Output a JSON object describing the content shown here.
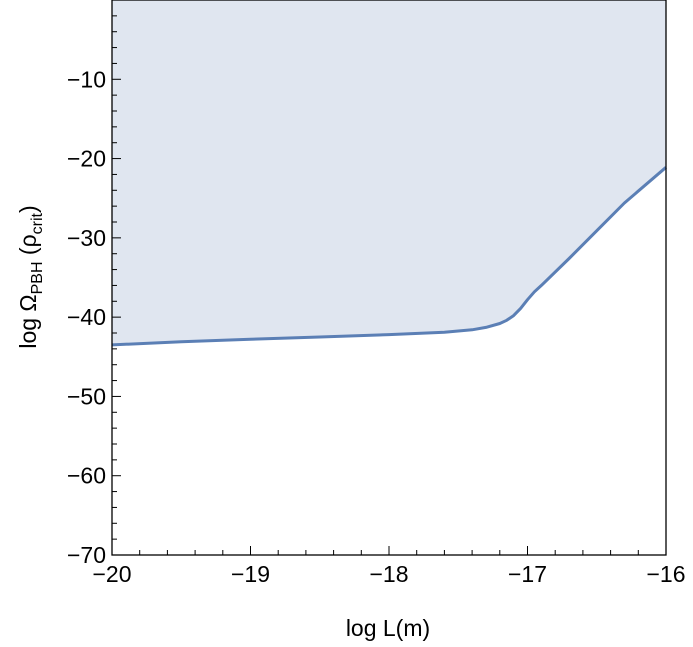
{
  "chart_data": {
    "type": "area",
    "xlabel": "log L(m)",
    "ylabel": {
      "prefix": "log Ω",
      "sub1": "PBH",
      "mid": " (ρ",
      "sub2": "crit",
      "suffix": ")"
    },
    "xlim": [
      -20,
      -16
    ],
    "ylim": [
      -70,
      0
    ],
    "x_ticks": [
      {
        "value": -20,
        "label": "−20"
      },
      {
        "value": -19,
        "label": "−19"
      },
      {
        "value": -18,
        "label": "−18"
      },
      {
        "value": -17,
        "label": "−17"
      },
      {
        "value": -16,
        "label": "−16"
      }
    ],
    "y_ticks": [
      {
        "value": -70,
        "label": "−70"
      },
      {
        "value": -60,
        "label": "−60"
      },
      {
        "value": -50,
        "label": "−50"
      },
      {
        "value": -40,
        "label": "−40"
      },
      {
        "value": -30,
        "label": "−30"
      },
      {
        "value": -20,
        "label": "−20"
      },
      {
        "value": -10,
        "label": "−10"
      }
    ],
    "grid": false,
    "fill": "above",
    "colors": {
      "line": "#5b7fb5",
      "fill": "#e0e6f0"
    },
    "series": [
      {
        "x": [
          -20,
          -19.5,
          -19,
          -18.5,
          -18,
          -17.6,
          -17.4,
          -17.3,
          -17.2,
          -17.15,
          -17.1,
          -17.05,
          -17.0,
          -16.95,
          -16.9,
          -16.7,
          -16.5,
          -16.3,
          -16.0
        ],
        "y": [
          -43.5,
          -43.1,
          -42.8,
          -42.5,
          -42.2,
          -41.9,
          -41.6,
          -41.3,
          -40.8,
          -40.4,
          -39.8,
          -38.9,
          -37.8,
          -36.8,
          -36.0,
          -32.6,
          -29.1,
          -25.6,
          -21.1
        ]
      }
    ]
  }
}
